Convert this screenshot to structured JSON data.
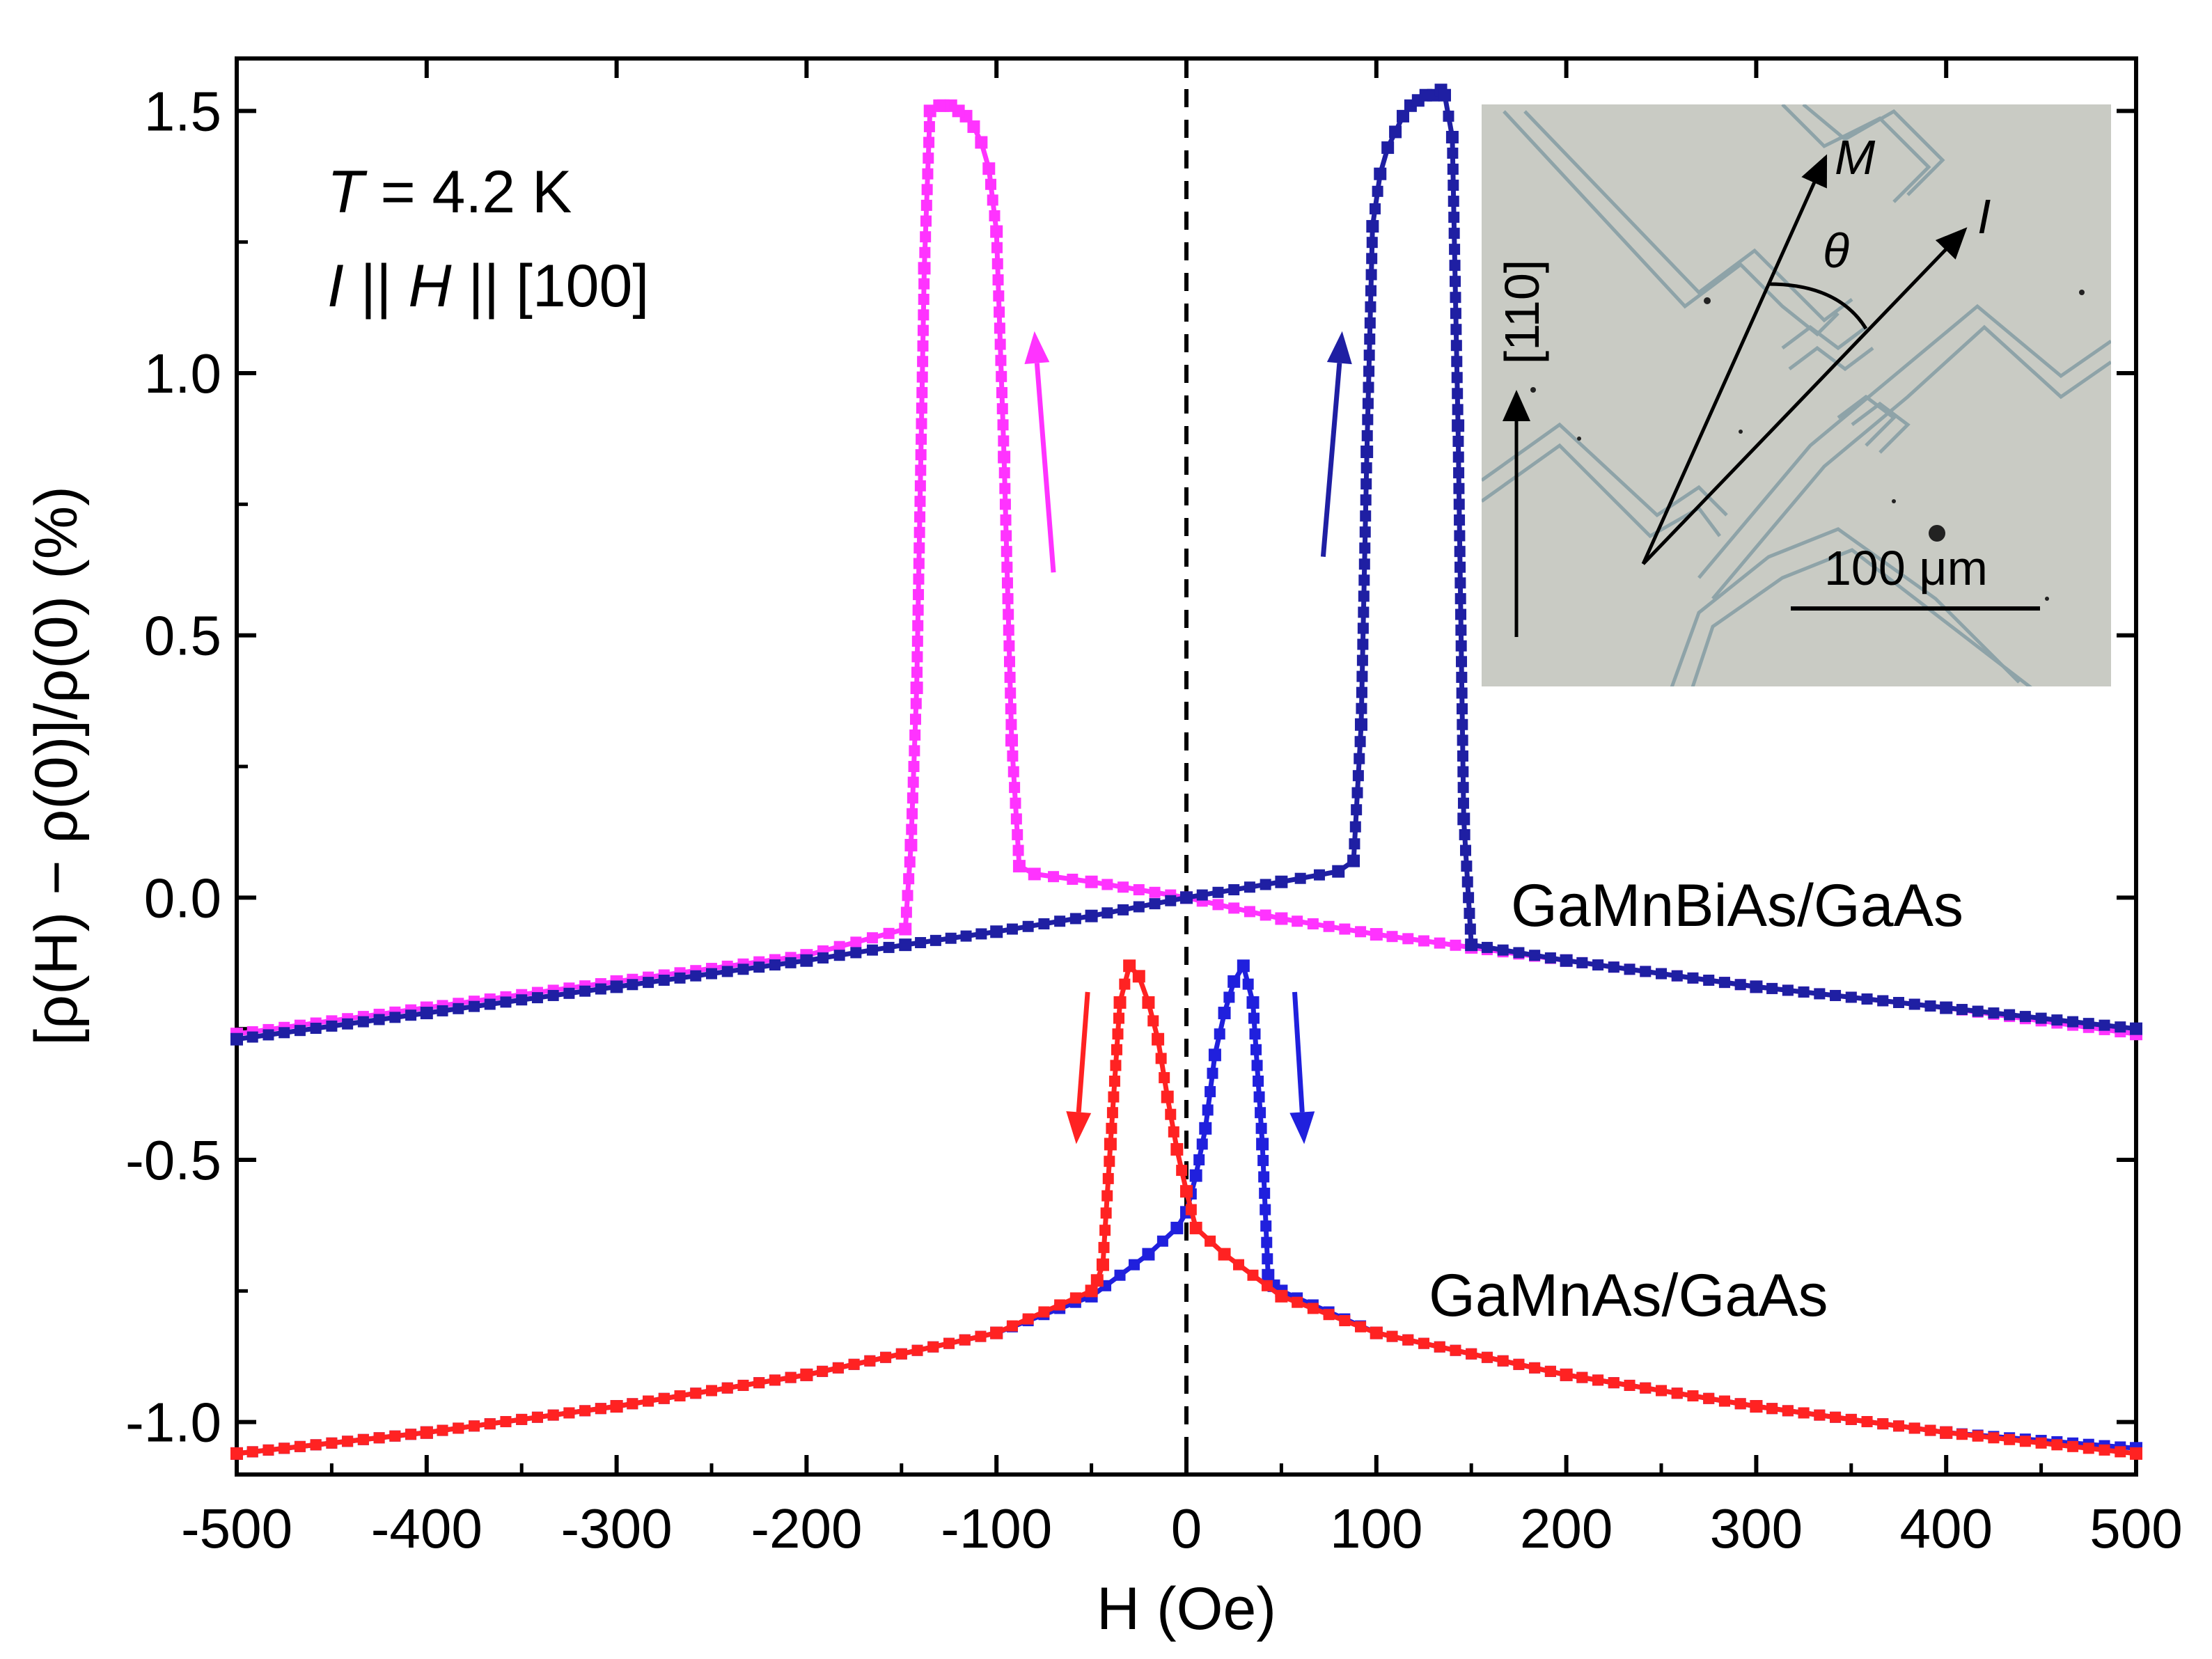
{
  "chart_data": {
    "type": "line",
    "title": "",
    "xlabel": "H (Oe)",
    "ylabel": "[ρ(H) − ρ(0)]/ρ(0) (%)",
    "xlim": [
      -500,
      500
    ],
    "ylim": [
      -1.1,
      1.6
    ],
    "xticks": [
      -500,
      -400,
      -300,
      -200,
      -100,
      0,
      100,
      200,
      300,
      400,
      500
    ],
    "xtick_labels": [
      "-500",
      "-400",
      "-300",
      "-200",
      "-100",
      "0",
      "100",
      "200",
      "300",
      "400",
      "500"
    ],
    "yticks": [
      -1.0,
      -0.5,
      0.0,
      0.5,
      1.0,
      1.5
    ],
    "ytick_labels": [
      "-1.0",
      "-0.5",
      "0.0",
      "0.5",
      "1.0",
      "1.5"
    ],
    "grid": false,
    "annotations": {
      "temperature": {
        "italic": "T",
        "text": " = 4.2 K"
      },
      "geometry": [
        {
          "text": "I",
          "italic": true
        },
        {
          "text": " || ",
          "italic": false
        },
        {
          "text": "H",
          "italic": true
        },
        {
          "text": " || [100]",
          "italic": false
        }
      ]
    },
    "sample_labels": [
      "GaMnBiAs/GaAs",
      "GaMnAs/GaAs"
    ],
    "series": [
      {
        "name": "GaMnBiAs/GaAs down-sweep",
        "color": "#ff33ff",
        "x": [
          500,
          400,
          300,
          200,
          150,
          100,
          50,
          0,
          -50,
          -80,
          -88,
          -92,
          -96,
          -100,
          -104,
          -108,
          -112,
          -116,
          -120,
          -124,
          -128,
          -130,
          -135,
          -138,
          -142,
          -145,
          -148,
          -200,
          -300,
          -400,
          -500
        ],
        "y": [
          -0.26,
          -0.21,
          -0.17,
          -0.12,
          -0.095,
          -0.07,
          -0.04,
          0.0,
          0.03,
          0.045,
          0.06,
          0.3,
          0.84,
          1.27,
          1.39,
          1.44,
          1.47,
          1.49,
          1.5,
          1.51,
          1.51,
          1.51,
          1.5,
          1.2,
          0.4,
          0.1,
          -0.06,
          -0.11,
          -0.16,
          -0.21,
          -0.26
        ]
      },
      {
        "name": "GaMnBiAs/GaAs up-sweep",
        "color": "#1f1fa3",
        "x": [
          -500,
          -400,
          -300,
          -200,
          -148,
          -100,
          -50,
          0,
          50,
          80,
          88,
          92,
          95,
          98,
          102,
          106,
          110,
          114,
          118,
          122,
          126,
          130,
          134,
          136,
          140,
          143,
          146,
          150,
          200,
          300,
          400,
          500
        ],
        "y": [
          -0.27,
          -0.22,
          -0.17,
          -0.12,
          -0.09,
          -0.065,
          -0.035,
          0.0,
          0.03,
          0.05,
          0.07,
          0.33,
          0.85,
          1.28,
          1.38,
          1.43,
          1.46,
          1.49,
          1.51,
          1.52,
          1.53,
          1.53,
          1.54,
          1.53,
          1.45,
          0.9,
          0.15,
          -0.09,
          -0.12,
          -0.17,
          -0.21,
          -0.25
        ]
      },
      {
        "name": "GaMnAs/GaAs up-sweep",
        "color": "#2020dd",
        "x": [
          -500,
          -400,
          -300,
          -200,
          -100,
          -50,
          -20,
          -5,
          0,
          5,
          10,
          15,
          20,
          25,
          30,
          35,
          40,
          43,
          46,
          50,
          100,
          200,
          300,
          400,
          500
        ],
        "y": [
          -1.06,
          -1.02,
          -0.97,
          -0.91,
          -0.83,
          -0.76,
          -0.68,
          -0.63,
          -0.6,
          -0.53,
          -0.44,
          -0.3,
          -0.22,
          -0.16,
          -0.13,
          -0.2,
          -0.47,
          -0.72,
          -0.74,
          -0.75,
          -0.83,
          -0.91,
          -0.97,
          -1.02,
          -1.05
        ]
      },
      {
        "name": "GaMnAs/GaAs down-sweep",
        "color": "#ff2222",
        "x": [
          500,
          400,
          300,
          200,
          100,
          50,
          20,
          5,
          0,
          -5,
          -10,
          -15,
          -20,
          -25,
          -30,
          -35,
          -40,
          -44,
          -47,
          -50,
          -100,
          -200,
          -300,
          -400,
          -500
        ],
        "y": [
          -1.06,
          -1.02,
          -0.97,
          -0.91,
          -0.83,
          -0.76,
          -0.68,
          -0.63,
          -0.56,
          -0.48,
          -0.38,
          -0.27,
          -0.2,
          -0.15,
          -0.13,
          -0.2,
          -0.47,
          -0.7,
          -0.73,
          -0.75,
          -0.83,
          -0.91,
          -0.97,
          -1.02,
          -1.06
        ]
      }
    ],
    "sweep_arrows": [
      {
        "series": "GaMnBiAs/GaAs down-sweep",
        "color": "#ff33ff",
        "direction": "up",
        "from": [
          -70,
          0.62
        ],
        "to": [
          -80,
          1.08
        ]
      },
      {
        "series": "GaMnBiAs/GaAs up-sweep",
        "color": "#1f1fa3",
        "direction": "up",
        "from": [
          72,
          0.65
        ],
        "to": [
          82,
          1.08
        ]
      },
      {
        "series": "GaMnAs/GaAs down-sweep",
        "color": "#ff2222",
        "direction": "down",
        "from": [
          -52,
          -0.18
        ],
        "to": [
          -58,
          -0.47
        ]
      },
      {
        "series": "GaMnAs/GaAs up-sweep",
        "color": "#2020dd",
        "direction": "down",
        "from": [
          57,
          -0.18
        ],
        "to": [
          62,
          -0.47
        ]
      }
    ],
    "reference_line": {
      "x": 0,
      "style": "dashed"
    },
    "inset": {
      "type": "micrograph",
      "labels": {
        "M": "M",
        "I": "I",
        "theta": "θ",
        "direction": "[110]"
      },
      "scale_bar": "100 μm"
    }
  }
}
